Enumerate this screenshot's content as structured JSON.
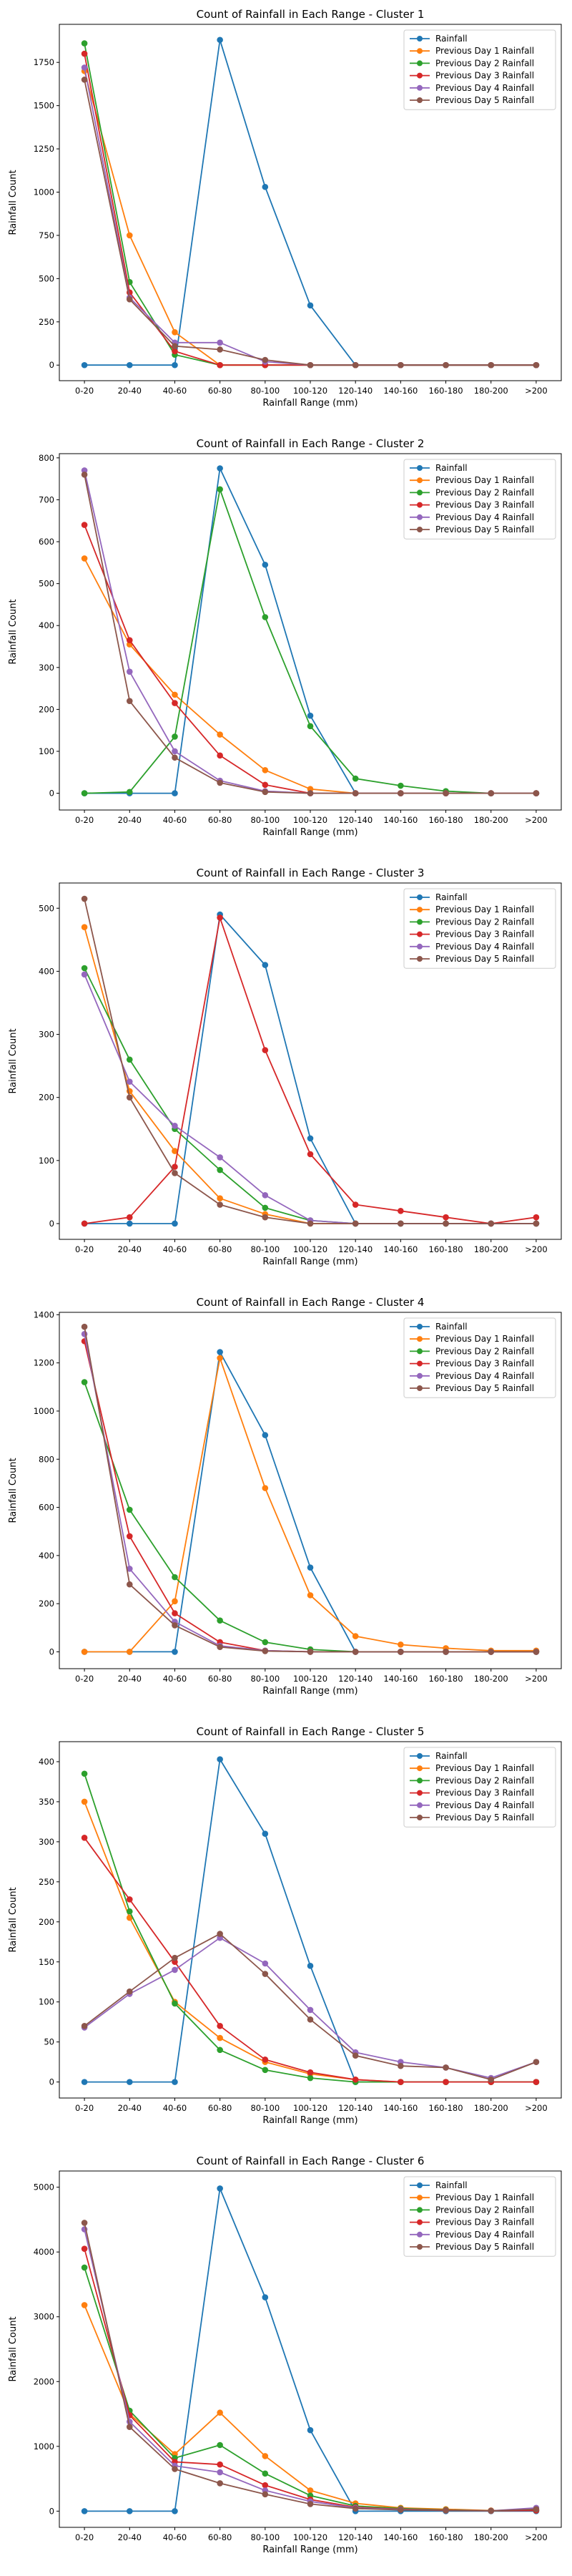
{
  "series_colors": [
    "#1f77b4",
    "#ff7f0e",
    "#2ca02c",
    "#d62728",
    "#9467bd",
    "#8c564b"
  ],
  "chart_data": [
    {
      "type": "line",
      "title": "Count of Rainfall in Each Range - Cluster 1",
      "xlabel": "Rainfall Range (mm)",
      "ylabel": "Rainfall Count",
      "categories": [
        "0-20",
        "20-40",
        "40-60",
        "60-80",
        "80-100",
        "100-120",
        "120-140",
        "140-160",
        "160-180",
        "180-200",
        ">200"
      ],
      "ylim": [
        -90,
        1970
      ],
      "yticks": [
        0,
        250,
        500,
        750,
        1000,
        1250,
        1500,
        1750
      ],
      "grid": false,
      "legend": "top-right",
      "series": [
        {
          "name": "Rainfall",
          "values": [
            0,
            0,
            0,
            1880,
            1030,
            345,
            0,
            0,
            0,
            0,
            0
          ]
        },
        {
          "name": "Previous Day 1 Rainfall",
          "values": [
            1700,
            750,
            190,
            0,
            0,
            0,
            0,
            0,
            0,
            0,
            0
          ]
        },
        {
          "name": "Previous Day 2 Rainfall",
          "values": [
            1860,
            480,
            60,
            0,
            0,
            0,
            0,
            0,
            0,
            0,
            0
          ]
        },
        {
          "name": "Previous Day 3 Rainfall",
          "values": [
            1800,
            420,
            80,
            0,
            0,
            0,
            0,
            0,
            0,
            0,
            0
          ]
        },
        {
          "name": "Previous Day 4 Rainfall",
          "values": [
            1720,
            390,
            130,
            130,
            20,
            0,
            0,
            0,
            0,
            0,
            0
          ]
        },
        {
          "name": "Previous Day 5 Rainfall",
          "values": [
            1650,
            380,
            110,
            90,
            30,
            0,
            0,
            0,
            0,
            0,
            0
          ]
        }
      ]
    },
    {
      "type": "line",
      "title": "Count of Rainfall in Each Range - Cluster 2",
      "xlabel": "Rainfall Range (mm)",
      "ylabel": "Rainfall Count",
      "categories": [
        "0-20",
        "20-40",
        "40-60",
        "60-80",
        "80-100",
        "100-120",
        "120-140",
        "140-160",
        "160-180",
        "180-200",
        ">200"
      ],
      "ylim": [
        -40,
        810
      ],
      "yticks": [
        0,
        100,
        200,
        300,
        400,
        500,
        600,
        700,
        800
      ],
      "grid": false,
      "legend": "top-right",
      "series": [
        {
          "name": "Rainfall",
          "values": [
            0,
            0,
            0,
            775,
            545,
            185,
            0,
            0,
            0,
            0,
            0
          ]
        },
        {
          "name": "Previous Day 1 Rainfall",
          "values": [
            560,
            355,
            235,
            140,
            55,
            10,
            0,
            0,
            0,
            0,
            0
          ]
        },
        {
          "name": "Previous Day 2 Rainfall",
          "values": [
            0,
            3,
            135,
            725,
            420,
            160,
            35,
            18,
            5,
            0,
            0
          ]
        },
        {
          "name": "Previous Day 3 Rainfall",
          "values": [
            640,
            365,
            215,
            90,
            20,
            0,
            0,
            0,
            0,
            0,
            0
          ]
        },
        {
          "name": "Previous Day 4 Rainfall",
          "values": [
            770,
            290,
            100,
            30,
            5,
            0,
            0,
            0,
            0,
            0,
            0
          ]
        },
        {
          "name": "Previous Day 5 Rainfall",
          "values": [
            760,
            220,
            85,
            25,
            3,
            0,
            0,
            0,
            0,
            0,
            0
          ]
        }
      ]
    },
    {
      "type": "line",
      "title": "Count of Rainfall in Each Range - Cluster 3",
      "xlabel": "Rainfall Range (mm)",
      "ylabel": "Rainfall Count",
      "categories": [
        "0-20",
        "20-40",
        "40-60",
        "60-80",
        "80-100",
        "100-120",
        "120-140",
        "140-160",
        "160-180",
        "180-200",
        ">200"
      ],
      "ylim": [
        -25,
        540
      ],
      "yticks": [
        0,
        100,
        200,
        300,
        400,
        500
      ],
      "grid": false,
      "legend": "top-right",
      "series": [
        {
          "name": "Rainfall",
          "values": [
            0,
            0,
            0,
            490,
            410,
            135,
            0,
            0,
            0,
            0,
            0
          ]
        },
        {
          "name": "Previous Day 1 Rainfall",
          "values": [
            470,
            210,
            115,
            40,
            15,
            0,
            0,
            0,
            0,
            0,
            0
          ]
        },
        {
          "name": "Previous Day 2 Rainfall",
          "values": [
            405,
            260,
            150,
            85,
            25,
            5,
            0,
            0,
            0,
            0,
            0
          ]
        },
        {
          "name": "Previous Day 3 Rainfall",
          "values": [
            0,
            10,
            90,
            485,
            275,
            110,
            30,
            20,
            10,
            0,
            10
          ]
        },
        {
          "name": "Previous Day 4 Rainfall",
          "values": [
            395,
            225,
            155,
            105,
            45,
            5,
            0,
            0,
            0,
            0,
            0
          ]
        },
        {
          "name": "Previous Day 5 Rainfall",
          "values": [
            515,
            200,
            80,
            30,
            10,
            0,
            0,
            0,
            0,
            0,
            0
          ]
        }
      ]
    },
    {
      "type": "line",
      "title": "Count of Rainfall in Each Range - Cluster 4",
      "xlabel": "Rainfall Range (mm)",
      "ylabel": "Rainfall Count",
      "categories": [
        "0-20",
        "20-40",
        "40-60",
        "60-80",
        "80-100",
        "100-120",
        "120-140",
        "140-160",
        "160-180",
        "180-200",
        ">200"
      ],
      "ylim": [
        -70,
        1410
      ],
      "yticks": [
        0,
        200,
        400,
        600,
        800,
        1000,
        1200,
        1400
      ],
      "grid": false,
      "legend": "top-right",
      "series": [
        {
          "name": "Rainfall",
          "values": [
            0,
            0,
            0,
            1245,
            900,
            350,
            0,
            0,
            0,
            0,
            0
          ]
        },
        {
          "name": "Previous Day 1 Rainfall",
          "values": [
            0,
            0,
            210,
            1220,
            680,
            235,
            65,
            30,
            15,
            5,
            5
          ]
        },
        {
          "name": "Previous Day 2 Rainfall",
          "values": [
            1120,
            590,
            310,
            130,
            40,
            10,
            0,
            0,
            0,
            0,
            0
          ]
        },
        {
          "name": "Previous Day 3 Rainfall",
          "values": [
            1290,
            480,
            160,
            40,
            5,
            0,
            0,
            0,
            0,
            0,
            0
          ]
        },
        {
          "name": "Previous Day 4 Rainfall",
          "values": [
            1320,
            345,
            125,
            25,
            5,
            0,
            0,
            0,
            0,
            0,
            0
          ]
        },
        {
          "name": "Previous Day 5 Rainfall",
          "values": [
            1350,
            280,
            110,
            20,
            3,
            0,
            0,
            0,
            0,
            0,
            0
          ]
        }
      ]
    },
    {
      "type": "line",
      "title": "Count of Rainfall in Each Range - Cluster 5",
      "xlabel": "Rainfall Range (mm)",
      "ylabel": "Rainfall Count",
      "categories": [
        "0-20",
        "20-40",
        "40-60",
        "60-80",
        "80-100",
        "100-120",
        "120-140",
        "140-160",
        "160-180",
        "180-200",
        ">200"
      ],
      "ylim": [
        -20,
        425
      ],
      "yticks": [
        0,
        50,
        100,
        150,
        200,
        250,
        300,
        350,
        400
      ],
      "grid": false,
      "legend": "top-right",
      "series": [
        {
          "name": "Rainfall",
          "values": [
            0,
            0,
            0,
            403,
            310,
            145,
            0,
            0,
            0,
            0,
            0
          ]
        },
        {
          "name": "Previous Day 1 Rainfall",
          "values": [
            350,
            205,
            100,
            55,
            25,
            10,
            3,
            0,
            0,
            0,
            0
          ]
        },
        {
          "name": "Previous Day 2 Rainfall",
          "values": [
            385,
            213,
            98,
            40,
            15,
            5,
            0,
            0,
            0,
            0,
            0
          ]
        },
        {
          "name": "Previous Day 3 Rainfall",
          "values": [
            305,
            228,
            150,
            70,
            28,
            12,
            3,
            0,
            0,
            0,
            0
          ]
        },
        {
          "name": "Previous Day 4 Rainfall",
          "values": [
            68,
            110,
            140,
            180,
            148,
            90,
            37,
            25,
            18,
            5,
            25
          ]
        },
        {
          "name": "Previous Day 5 Rainfall",
          "values": [
            70,
            113,
            155,
            185,
            135,
            78,
            33,
            20,
            18,
            3,
            25
          ]
        }
      ]
    },
    {
      "type": "line",
      "title": "Count of Rainfall in Each Range - Cluster 6",
      "xlabel": "Rainfall Range (mm)",
      "ylabel": "Rainfall Count",
      "categories": [
        "0-20",
        "20-40",
        "40-60",
        "60-80",
        "80-100",
        "100-120",
        "120-140",
        "140-160",
        "160-180",
        "180-200",
        ">200"
      ],
      "ylim": [
        -250,
        5250
      ],
      "yticks": [
        0,
        1000,
        2000,
        3000,
        4000,
        5000
      ],
      "grid": false,
      "legend": "top-right",
      "series": [
        {
          "name": "Rainfall",
          "values": [
            0,
            0,
            0,
            4980,
            3300,
            1250,
            0,
            0,
            0,
            0,
            0
          ]
        },
        {
          "name": "Previous Day 1 Rainfall",
          "values": [
            3180,
            1500,
            880,
            1520,
            850,
            320,
            120,
            50,
            30,
            10,
            20
          ]
        },
        {
          "name": "Previous Day 2 Rainfall",
          "values": [
            3760,
            1550,
            820,
            1020,
            580,
            240,
            80,
            40,
            20,
            5,
            10
          ]
        },
        {
          "name": "Previous Day 3 Rainfall",
          "values": [
            4050,
            1480,
            760,
            720,
            400,
            180,
            60,
            30,
            15,
            5,
            10
          ]
        },
        {
          "name": "Previous Day 4 Rainfall",
          "values": [
            4350,
            1380,
            700,
            600,
            320,
            150,
            50,
            25,
            10,
            5,
            50
          ]
        },
        {
          "name": "Previous Day 5 Rainfall",
          "values": [
            4450,
            1300,
            650,
            430,
            260,
            110,
            40,
            20,
            10,
            5,
            30
          ]
        }
      ]
    }
  ]
}
